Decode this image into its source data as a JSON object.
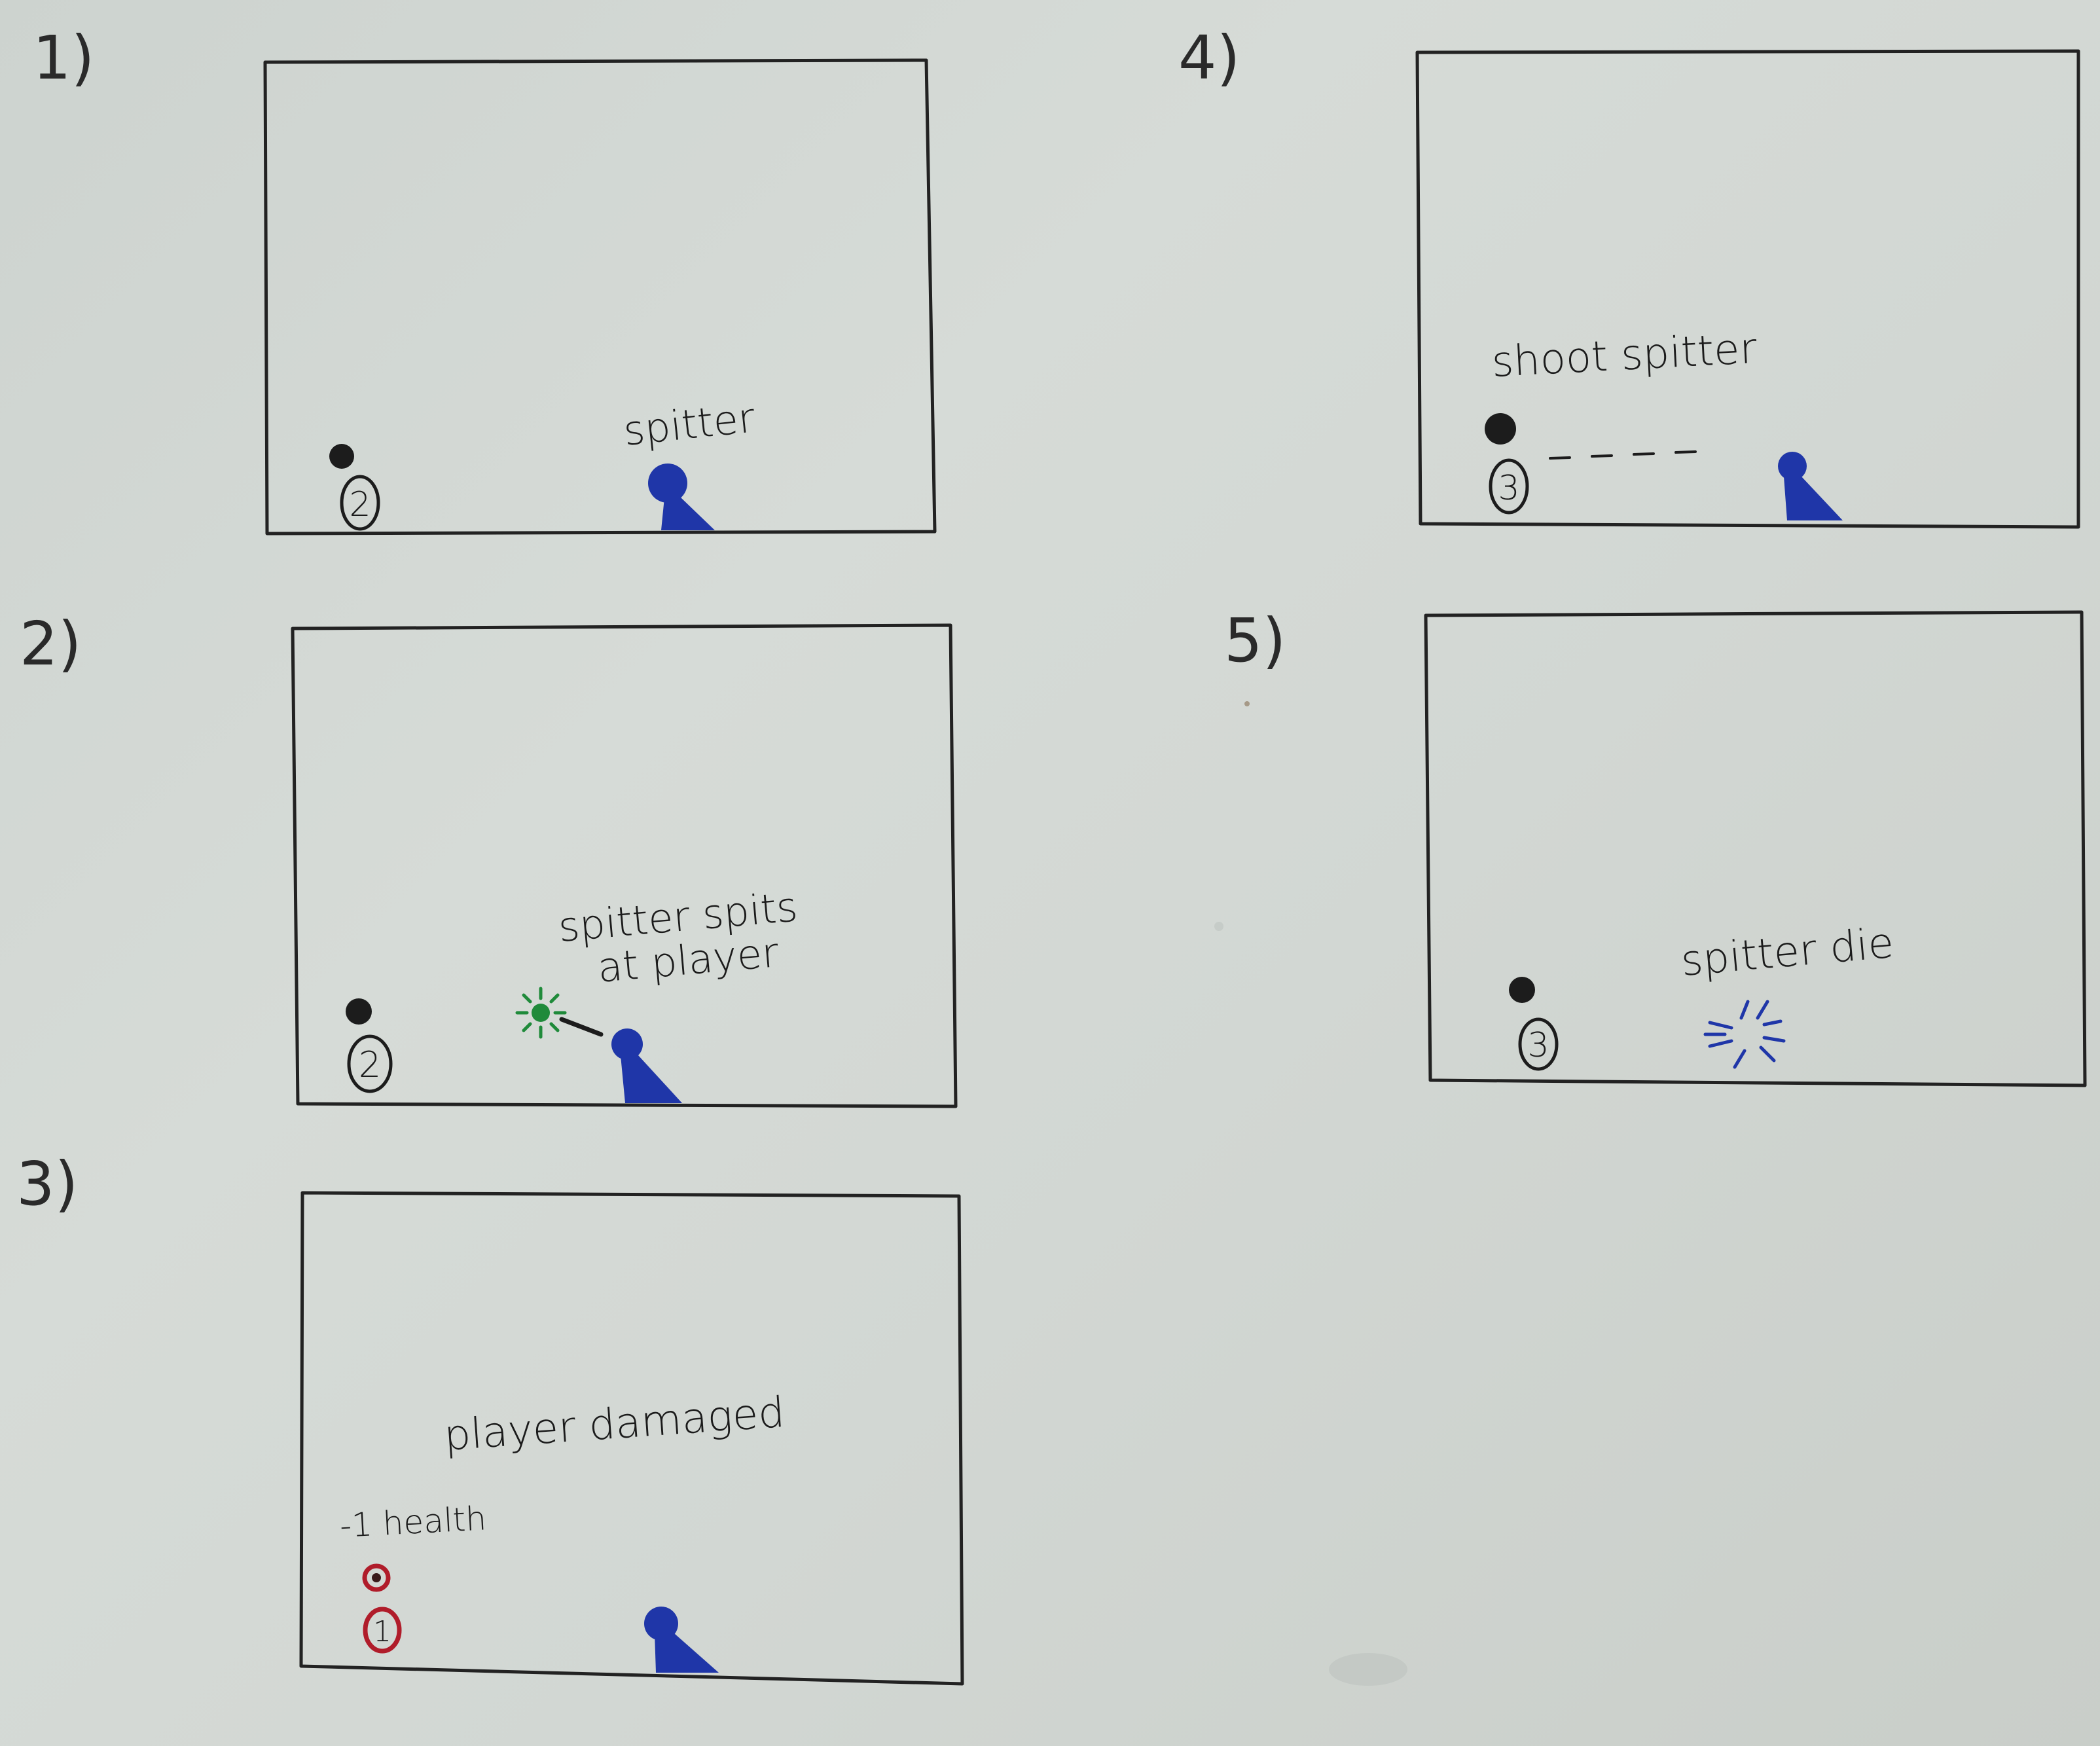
{
  "storyboard": {
    "panels": [
      {
        "number": "1)",
        "caption": "spitter",
        "player_health": "2",
        "spitter_state": "idle"
      },
      {
        "number": "2)",
        "caption_line1": "spitter spits",
        "caption_line2": "at player",
        "player_health": "2",
        "spitter_state": "spitting"
      },
      {
        "number": "3)",
        "caption": "player damaged",
        "health_note": "-1 health",
        "player_health": "1",
        "spitter_state": "idle"
      },
      {
        "number": "4)",
        "caption": "shoot spitter",
        "player_health": "3",
        "spitter_state": "shot"
      },
      {
        "number": "5)",
        "caption": "spitter die",
        "player_health": "3",
        "spitter_state": "dead"
      }
    ]
  },
  "colors": {
    "ink": "#1b1b1b",
    "spitter_blue": "#1f36a8",
    "spit_green": "#1f8a3a",
    "damage_red": "#b01c2a"
  }
}
